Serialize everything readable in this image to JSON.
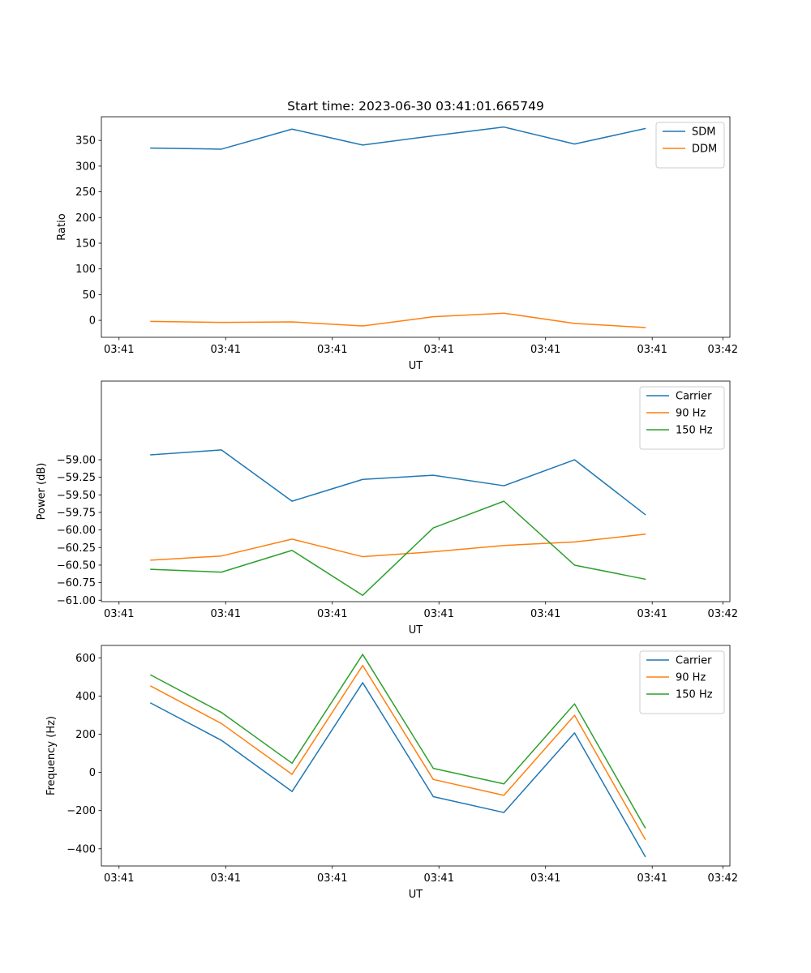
{
  "chart_data": [
    {
      "type": "line",
      "title": "Start time: 2023-06-30 03:41:01.665749",
      "xlabel": "UT",
      "ylabel": "Ratio",
      "x": [
        1,
        2,
        3,
        4,
        5,
        6,
        7,
        8
      ],
      "xlim": [
        0.3,
        9.2
      ],
      "xticks": [
        0.55,
        2.06,
        3.57,
        5.08,
        6.59,
        8.1,
        9.1
      ],
      "xtick_labels": [
        "03:41",
        "03:41",
        "03:41",
        "03:41",
        "03:41",
        "03:41",
        "03:42"
      ],
      "ylim": [
        -33,
        396
      ],
      "yticks": [
        0,
        50,
        100,
        150,
        200,
        250,
        300,
        350
      ],
      "ytick_labels": [
        "0",
        "50",
        "100",
        "150",
        "200",
        "250",
        "300",
        "350"
      ],
      "series": [
        {
          "name": "SDM",
          "color": "#1f77b4",
          "values": [
            335,
            333,
            372,
            341,
            359,
            376,
            343,
            373
          ]
        },
        {
          "name": "DDM",
          "color": "#ff7f0e",
          "values": [
            -2,
            -4,
            -3,
            -11,
            7,
            14,
            -6,
            -14
          ]
        }
      ],
      "legend": "top-right",
      "grid": false
    },
    {
      "type": "line",
      "title": "",
      "xlabel": "UT",
      "ylabel": "Power (dB)",
      "x": [
        1,
        2,
        3,
        4,
        5,
        6,
        7,
        8
      ],
      "xlim": [
        0.3,
        9.2
      ],
      "xticks": [
        0.55,
        2.06,
        3.57,
        5.08,
        6.59,
        8.1,
        9.1
      ],
      "xtick_labels": [
        "03:41",
        "03:41",
        "03:41",
        "03:41",
        "03:41",
        "03:41",
        "03:42"
      ],
      "ylim": [
        -61.02,
        -57.88
      ],
      "yticks": [
        -61.0,
        -60.75,
        -60.5,
        -60.25,
        -60.0,
        -59.75,
        -59.5,
        -59.25,
        -59.0
      ],
      "ytick_labels": [
        "−61.00",
        "−60.75",
        "−60.50",
        "−60.25",
        "−60.00",
        "−59.75",
        "−59.50",
        "−59.25",
        "−59.00"
      ],
      "series": [
        {
          "name": "Carrier",
          "color": "#1f77b4",
          "values": [
            -58.93,
            -58.86,
            -59.59,
            -59.28,
            -59.22,
            -59.37,
            -59.0,
            -59.78
          ]
        },
        {
          "name": "90 Hz",
          "color": "#ff7f0e",
          "values": [
            -60.43,
            -60.37,
            -60.13,
            -60.38,
            -60.31,
            -60.22,
            -60.17,
            -60.06
          ]
        },
        {
          "name": "150 Hz",
          "color": "#2ca02c",
          "values": [
            -60.56,
            -60.6,
            -60.29,
            -60.93,
            -59.97,
            -59.59,
            -60.5,
            -60.7
          ]
        }
      ],
      "legend": "top-right",
      "grid": false
    },
    {
      "type": "line",
      "title": "",
      "xlabel": "UT",
      "ylabel": "Frequency (Hz)",
      "x": [
        1,
        2,
        3,
        4,
        5,
        6,
        7,
        8
      ],
      "xlim": [
        0.3,
        9.2
      ],
      "xticks": [
        0.55,
        2.06,
        3.57,
        5.08,
        6.59,
        8.1,
        9.1
      ],
      "xtick_labels": [
        "03:41",
        "03:41",
        "03:41",
        "03:41",
        "03:41",
        "03:41",
        "03:42"
      ],
      "ylim": [
        -490,
        665
      ],
      "yticks": [
        -400,
        -200,
        0,
        200,
        400,
        600
      ],
      "ytick_labels": [
        "−400",
        "−200",
        "0",
        "200",
        "400",
        "600"
      ],
      "series": [
        {
          "name": "Carrier",
          "color": "#1f77b4",
          "values": [
            363,
            168,
            -100,
            470,
            -127,
            -210,
            207,
            -440
          ]
        },
        {
          "name": "90 Hz",
          "color": "#ff7f0e",
          "values": [
            452,
            256,
            -10,
            560,
            -37,
            -120,
            299,
            -350
          ]
        },
        {
          "name": "150 Hz",
          "color": "#2ca02c",
          "values": [
            510,
            314,
            48,
            618,
            21,
            -60,
            359,
            -290
          ]
        }
      ],
      "legend": "top-right",
      "grid": false
    }
  ]
}
